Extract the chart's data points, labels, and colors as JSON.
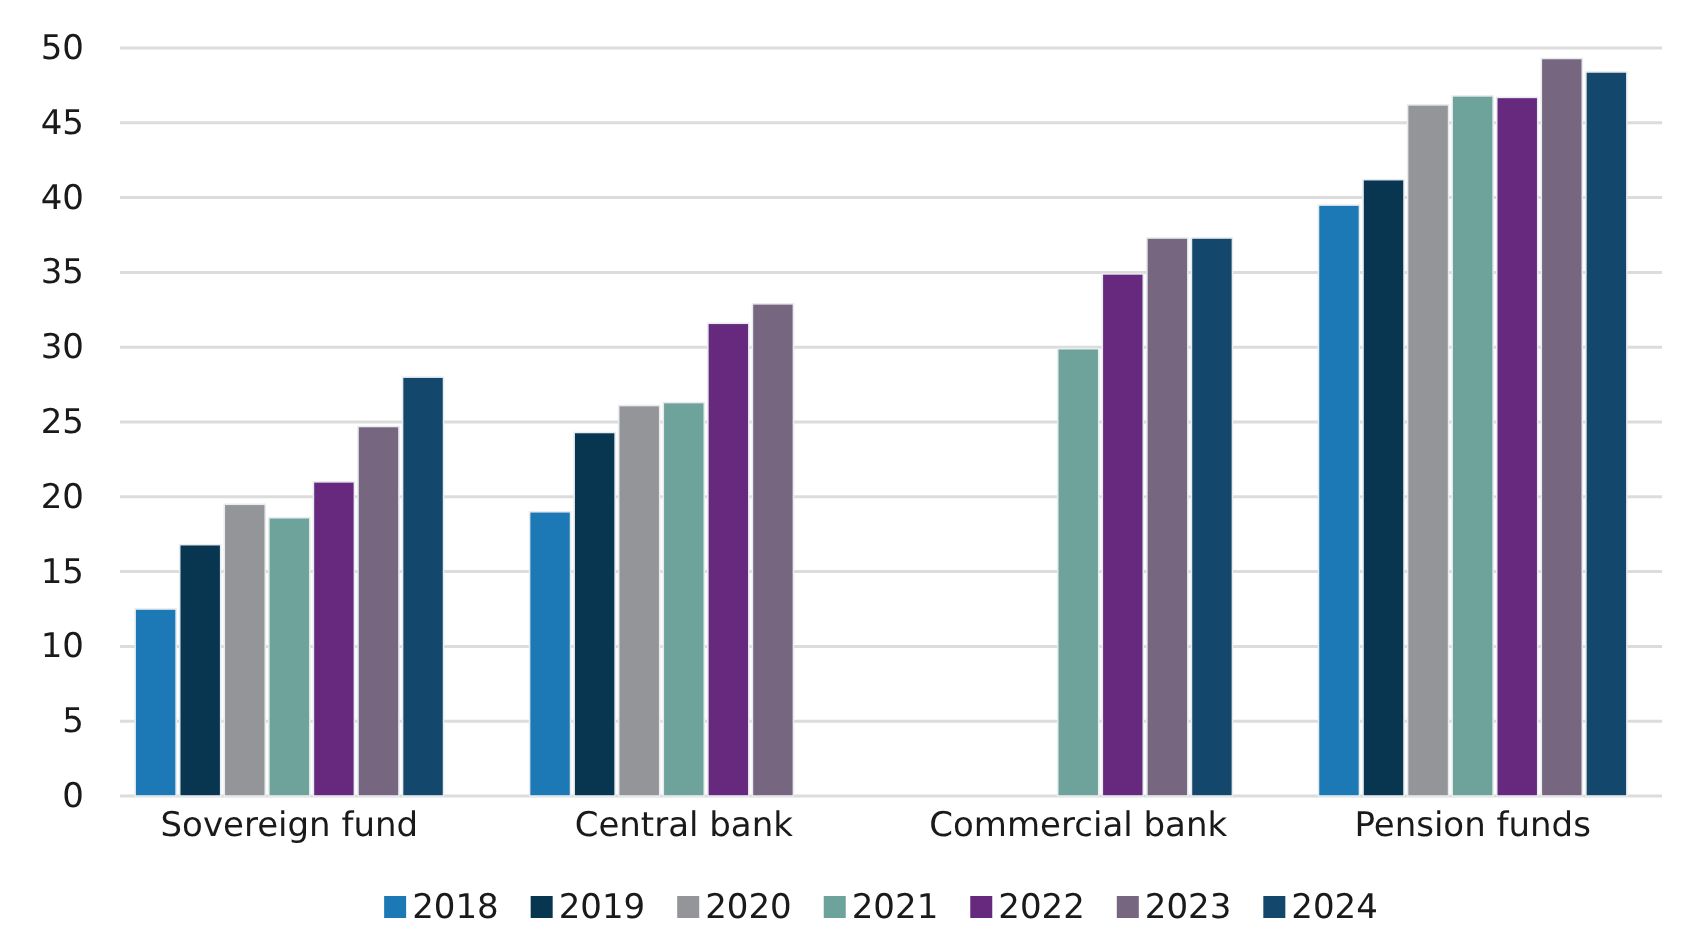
{
  "chart_data": {
    "type": "bar",
    "categories": [
      "Sovereign fund",
      "Central bank",
      "Commercial bank",
      "Pension funds"
    ],
    "series": [
      {
        "name": "2018",
        "color": "#1c79b5",
        "values": [
          12.5,
          19.0,
          null,
          39.5
        ]
      },
      {
        "name": "2019",
        "color": "#083651",
        "values": [
          16.8,
          24.3,
          null,
          41.2
        ]
      },
      {
        "name": "2020",
        "color": "#939598",
        "values": [
          19.5,
          26.1,
          null,
          46.2
        ]
      },
      {
        "name": "2021",
        "color": "#6da39b",
        "values": [
          18.6,
          26.3,
          29.9,
          46.8
        ]
      },
      {
        "name": "2022",
        "color": "#66297e",
        "values": [
          21.0,
          31.6,
          34.9,
          46.7
        ]
      },
      {
        "name": "2023",
        "color": "#77667f",
        "values": [
          24.7,
          32.9,
          37.3,
          49.3
        ]
      },
      {
        "name": "2024",
        "color": "#13476c",
        "values": [
          28.0,
          null,
          37.3,
          48.4
        ]
      }
    ],
    "ylim": [
      0,
      50
    ],
    "yticks": [
      0,
      5,
      10,
      15,
      20,
      25,
      30,
      35,
      40,
      45,
      50
    ],
    "grid": "y",
    "legend": "bottom"
  }
}
